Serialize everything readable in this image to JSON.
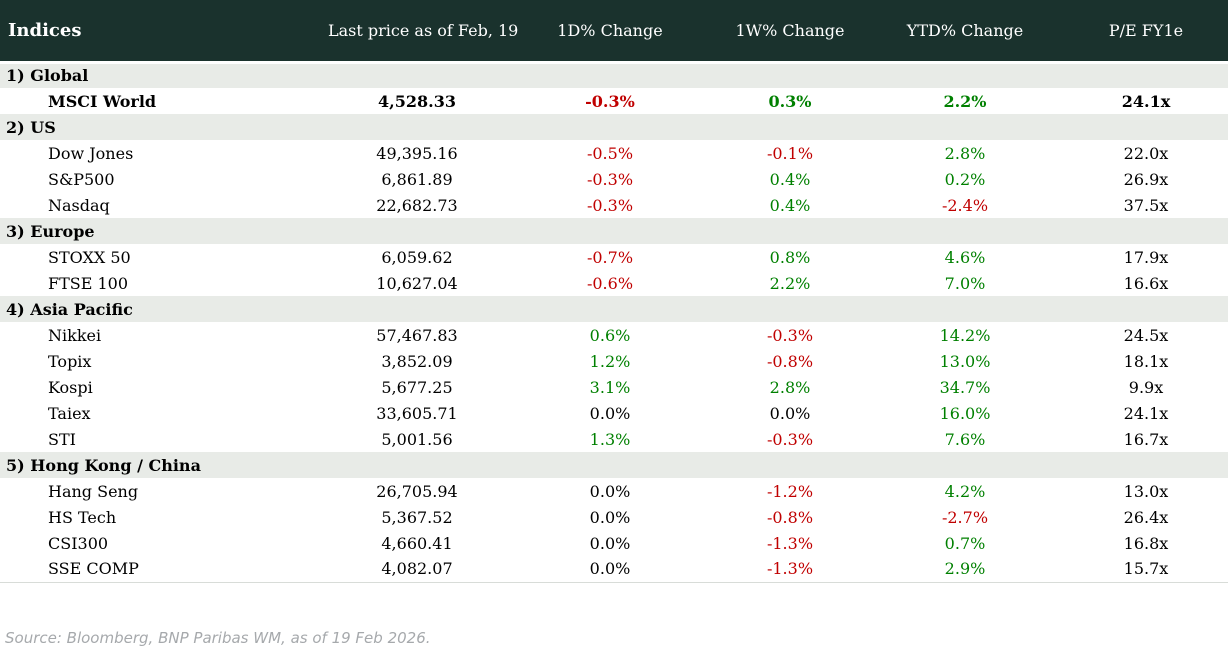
{
  "chart_data": {
    "type": "table",
    "title": "Indices",
    "corner_label": "Indices",
    "columns": [
      "Last price as of Feb, 19",
      "1D% Change",
      "1W% Change",
      "YTD% Change",
      "P/E FY1e"
    ],
    "sections": [
      {
        "label": "1) Global",
        "rows": [
          {
            "name": "MSCI World",
            "price": "4,528.33",
            "chg_1d": "-0.3%",
            "chg_1w": "0.3%",
            "chg_ytd": "2.2%",
            "pe": "24.1x",
            "bold": true
          }
        ]
      },
      {
        "label": "2) US",
        "rows": [
          {
            "name": "Dow Jones",
            "price": "49,395.16",
            "chg_1d": "-0.5%",
            "chg_1w": "-0.1%",
            "chg_ytd": "2.8%",
            "pe": "22.0x",
            "bold": false
          },
          {
            "name": "S&P500",
            "price": "6,861.89",
            "chg_1d": "-0.3%",
            "chg_1w": "0.4%",
            "chg_ytd": "0.2%",
            "pe": "26.9x",
            "bold": false
          },
          {
            "name": "Nasdaq",
            "price": "22,682.73",
            "chg_1d": "-0.3%",
            "chg_1w": "0.4%",
            "chg_ytd": "-2.4%",
            "pe": "37.5x",
            "bold": false
          }
        ]
      },
      {
        "label": "3) Europe",
        "rows": [
          {
            "name": "STOXX 50",
            "price": "6,059.62",
            "chg_1d": "-0.7%",
            "chg_1w": "0.8%",
            "chg_ytd": "4.6%",
            "pe": "17.9x",
            "bold": false
          },
          {
            "name": "FTSE 100",
            "price": "10,627.04",
            "chg_1d": "-0.6%",
            "chg_1w": "2.2%",
            "chg_ytd": "7.0%",
            "pe": "16.6x",
            "bold": false
          }
        ]
      },
      {
        "label": "4) Asia Pacific",
        "rows": [
          {
            "name": "Nikkei",
            "price": "57,467.83",
            "chg_1d": "0.6%",
            "chg_1w": "-0.3%",
            "chg_ytd": "14.2%",
            "pe": "24.5x",
            "bold": false
          },
          {
            "name": "Topix",
            "price": "3,852.09",
            "chg_1d": "1.2%",
            "chg_1w": "-0.8%",
            "chg_ytd": "13.0%",
            "pe": "18.1x",
            "bold": false
          },
          {
            "name": "Kospi",
            "price": "5,677.25",
            "chg_1d": "3.1%",
            "chg_1w": "2.8%",
            "chg_ytd": "34.7%",
            "pe": "9.9x",
            "bold": false
          },
          {
            "name": "Taiex",
            "price": "33,605.71",
            "chg_1d": "0.0%",
            "chg_1w": "0.0%",
            "chg_ytd": "16.0%",
            "pe": "24.1x",
            "bold": false
          },
          {
            "name": "STI",
            "price": "5,001.56",
            "chg_1d": "1.3%",
            "chg_1w": "-0.3%",
            "chg_ytd": "7.6%",
            "pe": "16.7x",
            "bold": false
          }
        ]
      },
      {
        "label": "5) Hong Kong / China",
        "rows": [
          {
            "name": "Hang Seng",
            "price": "26,705.94",
            "chg_1d": "0.0%",
            "chg_1w": "-1.2%",
            "chg_ytd": "4.2%",
            "pe": "13.0x",
            "bold": false
          },
          {
            "name": "HS Tech",
            "price": "5,367.52",
            "chg_1d": "0.0%",
            "chg_1w": "-0.8%",
            "chg_ytd": "-2.7%",
            "pe": "26.4x",
            "bold": false
          },
          {
            "name": "CSI300",
            "price": "4,660.41",
            "chg_1d": "0.0%",
            "chg_1w": "-1.3%",
            "chg_ytd": "0.7%",
            "pe": "16.8x",
            "bold": false
          },
          {
            "name": "SSE COMP",
            "price": "4,082.07",
            "chg_1d": "0.0%",
            "chg_1w": "-1.3%",
            "chg_ytd": "2.9%",
            "pe": "15.7x",
            "bold": false
          }
        ]
      }
    ],
    "source_note": "Source: Bloomberg, BNP Paribas WM, as of 19 Feb 2026."
  },
  "colors": {
    "header_bg": "#1a322d",
    "header_text": "#ffffff",
    "section_bg": "#e8ebe7",
    "positive": "#008000",
    "negative": "#c00000",
    "neutral": "#000000",
    "source_text": "#a6a9ac",
    "table_border": "#d8dcd8"
  }
}
